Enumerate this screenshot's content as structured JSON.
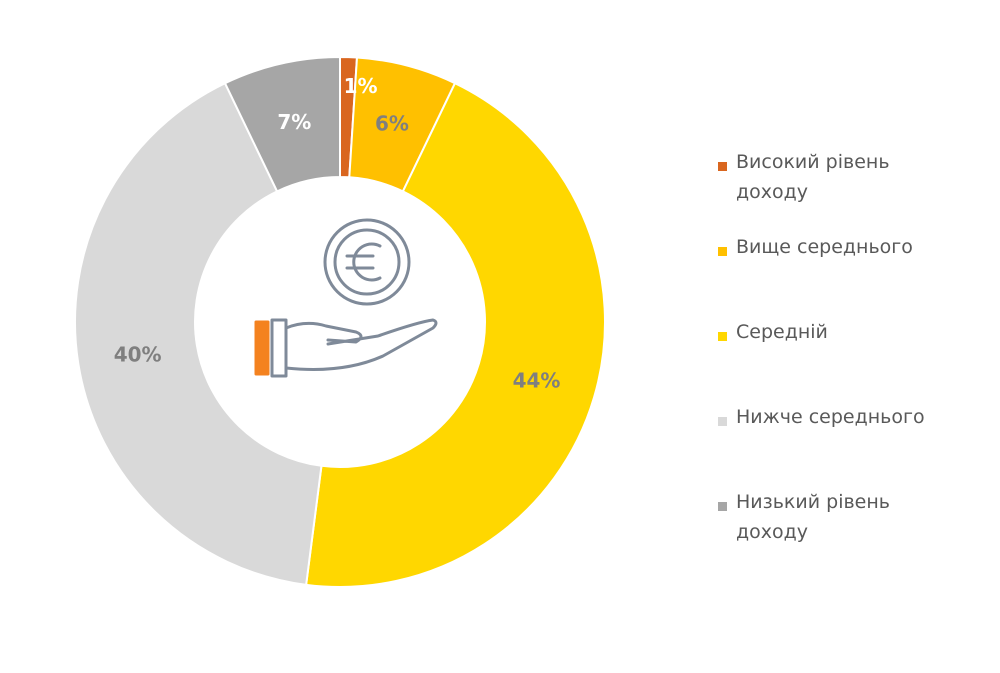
{
  "chart_data": {
    "type": "donut",
    "categories": [
      "Високий рівень доходу",
      "Вище середнього",
      "Середній",
      "Нижче середнього",
      "Низький рівень доходу"
    ],
    "values": [
      1,
      6,
      44,
      40,
      7
    ],
    "value_labels": [
      "1%",
      "6%",
      "44%",
      "40%",
      "7%"
    ],
    "colors": [
      "#d9661f",
      "#ffc000",
      "#ffd700",
      "#d9d9d9",
      "#a6a6a6"
    ],
    "legend": "right"
  }
}
